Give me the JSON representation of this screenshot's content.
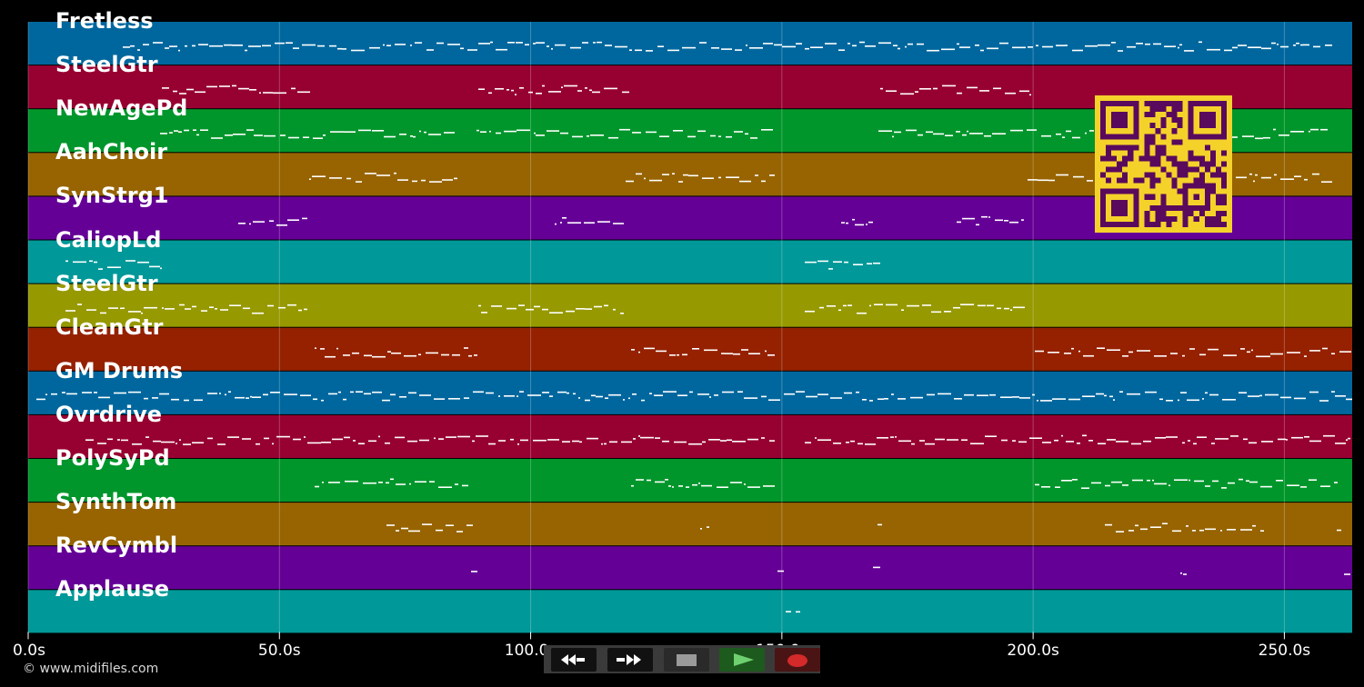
{
  "tracks": [
    {
      "name": "Fretless",
      "color": "#00679e"
    },
    {
      "name": "SteelGtr",
      "color": "#970131"
    },
    {
      "name": "NewAgePd",
      "color": "#00962b"
    },
    {
      "name": "AahChoir",
      "color": "#976401"
    },
    {
      "name": "SynStrg1",
      "color": "#650097"
    },
    {
      "name": "CaliopLd",
      "color": "#009898"
    },
    {
      "name": "SteelGtr",
      "color": "#969900"
    },
    {
      "name": "CleanGtr",
      "color": "#952101"
    },
    {
      "name": "GM Drums",
      "color": "#00679e"
    },
    {
      "name": "Ovrdrive",
      "color": "#970131"
    },
    {
      "name": "PolySyPd",
      "color": "#00962b"
    },
    {
      "name": "SynthTom",
      "color": "#976401"
    },
    {
      "name": "RevCymbl",
      "color": "#650097"
    },
    {
      "name": "Applause",
      "color": "#009898"
    }
  ],
  "timeline": {
    "ticks": [
      "0.0s",
      "50.0s",
      "100.0s",
      "150.0s",
      "200.0s",
      "250.0s"
    ],
    "tick_seconds": [
      0,
      50,
      100,
      150,
      200,
      250
    ],
    "end_seconds": 263.5
  },
  "copyright": "© www.midifiles.com",
  "transport": {
    "rewind_icon": "rewind-icon",
    "fast_forward_icon": "fast-forward-icon",
    "stop_icon": "stop-icon",
    "play_icon": "play-icon",
    "record_icon": "record-icon"
  },
  "qr_code": {
    "fg": "#5a0a5c",
    "bg": "#f5d22a"
  },
  "colors": {
    "background": "#000000",
    "note": "#ffffff"
  }
}
